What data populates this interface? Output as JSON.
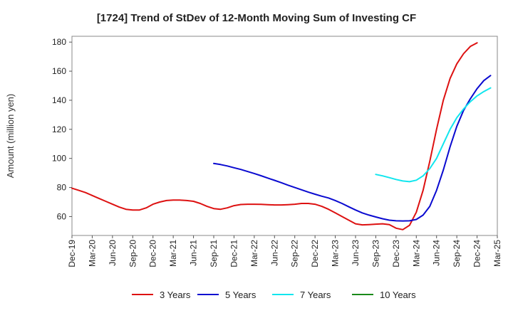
{
  "chart_data": {
    "type": "line",
    "title": "[1724]  Trend of StDev of 12-Month Moving Sum of Investing CF",
    "xlabel": "",
    "ylabel": "Amount (million yen)",
    "ylim": [
      47,
      184
    ],
    "yticks": [
      60,
      80,
      100,
      120,
      140,
      160,
      180
    ],
    "x_tick_labels": [
      "Dec-19",
      "Mar-20",
      "Jun-20",
      "Sep-20",
      "Dec-20",
      "Mar-21",
      "Jun-21",
      "Sep-21",
      "Dec-21",
      "Mar-22",
      "Jun-22",
      "Sep-22",
      "Dec-22",
      "Mar-23",
      "Jun-23",
      "Sep-23",
      "Dec-23",
      "Mar-24",
      "Jun-24",
      "Sep-24",
      "Dec-24",
      "Mar-25"
    ],
    "x_months": [
      "Dec-19",
      "Jan-20",
      "Feb-20",
      "Mar-20",
      "Apr-20",
      "May-20",
      "Jun-20",
      "Jul-20",
      "Aug-20",
      "Sep-20",
      "Oct-20",
      "Nov-20",
      "Dec-20",
      "Jan-21",
      "Feb-21",
      "Mar-21",
      "Apr-21",
      "May-21",
      "Jun-21",
      "Jul-21",
      "Aug-21",
      "Sep-21",
      "Oct-21",
      "Nov-21",
      "Dec-21",
      "Jan-22",
      "Feb-22",
      "Mar-22",
      "Apr-22",
      "May-22",
      "Jun-22",
      "Jul-22",
      "Aug-22",
      "Sep-22",
      "Oct-22",
      "Nov-22",
      "Dec-22",
      "Jan-23",
      "Feb-23",
      "Mar-23",
      "Apr-23",
      "May-23",
      "Jun-23",
      "Jul-23",
      "Aug-23",
      "Sep-23",
      "Oct-23",
      "Nov-23",
      "Dec-23",
      "Jan-24",
      "Feb-24",
      "Mar-24",
      "Apr-24",
      "May-24",
      "Jun-24",
      "Jul-24",
      "Aug-24",
      "Sep-24",
      "Oct-24",
      "Nov-24",
      "Dec-24",
      "Jan-25",
      "Feb-25",
      "Mar-25"
    ],
    "grid": true,
    "legend_position": "bottom",
    "series": [
      {
        "name": "3 Years",
        "color": "#dd1111",
        "start": "Dec-19",
        "values": [
          79.5,
          78.0,
          76.5,
          74.5,
          72.5,
          70.5,
          68.5,
          66.5,
          65.0,
          64.5,
          64.5,
          66.0,
          68.5,
          70.0,
          71.0,
          71.3,
          71.3,
          71.0,
          70.5,
          69.0,
          67.0,
          65.5,
          65.0,
          66.0,
          67.5,
          68.3,
          68.5,
          68.5,
          68.4,
          68.2,
          68.0,
          68.0,
          68.2,
          68.5,
          69.0,
          69.0,
          68.5,
          67.0,
          65.0,
          62.5,
          60.0,
          57.5,
          55.0,
          54.3,
          54.5,
          54.8,
          55.0,
          54.5,
          52.0,
          51.0,
          54.0,
          63.0,
          78.0,
          98.0,
          120.0,
          140.0,
          155.0,
          165.0,
          172.0,
          177.0,
          179.5
        ]
      },
      {
        "name": "5 Years",
        "color": "#0a0ad0",
        "start": "Sep-21",
        "values": [
          96.5,
          95.8,
          94.8,
          93.6,
          92.4,
          91.0,
          89.6,
          88.1,
          86.5,
          84.9,
          83.3,
          81.6,
          80.0,
          78.4,
          76.8,
          75.4,
          74.0,
          72.8,
          71.0,
          69.0,
          66.7,
          64.5,
          62.5,
          61.0,
          59.7,
          58.5,
          57.5,
          57.1,
          57.0,
          57.1,
          58.0,
          61.0,
          67.0,
          78.0,
          92.0,
          108.0,
          122.0,
          133.0,
          141.0,
          148.0,
          153.5,
          157.0
        ]
      },
      {
        "name": "7 Years",
        "color": "#11e6ee",
        "start": "Sep-23",
        "values": [
          89.0,
          88.0,
          86.8,
          85.5,
          84.5,
          84.0,
          85.0,
          88.0,
          93.0,
          100.0,
          110.0,
          120.0,
          128.0,
          134.0,
          139.0,
          143.0,
          146.0,
          148.5
        ]
      },
      {
        "name": "10 Years",
        "color": "#1a8a1a",
        "start": "Dec-24",
        "values": []
      }
    ]
  }
}
